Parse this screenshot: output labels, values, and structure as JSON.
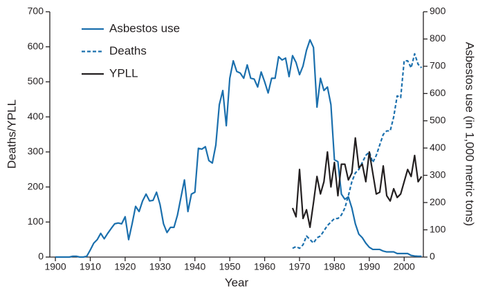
{
  "chart_data": {
    "type": "line",
    "x_label": "Year",
    "y_label": "Deaths/YPLL",
    "y2_label": "Asbestos use (in 1,000 metric tons)",
    "legend": "top-left",
    "x": [
      1900,
      1901,
      1902,
      1903,
      1904,
      1905,
      1906,
      1907,
      1908,
      1909,
      1910,
      1911,
      1912,
      1913,
      1914,
      1915,
      1916,
      1917,
      1918,
      1919,
      1920,
      1921,
      1922,
      1923,
      1924,
      1925,
      1926,
      1927,
      1928,
      1929,
      1930,
      1931,
      1932,
      1933,
      1934,
      1935,
      1936,
      1937,
      1938,
      1939,
      1940,
      1941,
      1942,
      1943,
      1944,
      1945,
      1946,
      1947,
      1948,
      1949,
      1950,
      1951,
      1952,
      1953,
      1954,
      1955,
      1956,
      1957,
      1958,
      1959,
      1960,
      1961,
      1962,
      1963,
      1964,
      1965,
      1966,
      1967,
      1968,
      1969,
      1970,
      1971,
      1972,
      1973,
      1974,
      1975,
      1976,
      1977,
      1978,
      1979,
      1980,
      1981,
      1982,
      1983,
      1984,
      1985,
      1986,
      1987,
      1988,
      1989,
      1990,
      1991,
      1992,
      1993,
      1994,
      1995,
      1996,
      1997,
      1998,
      1999,
      2000,
      2001,
      2002,
      2003,
      2004,
      2005
    ],
    "series": [
      {
        "name": "Asbestos use",
        "color": "#1a6fad",
        "style": "solid",
        "axis": "y2",
        "values": [
          0,
          0,
          0,
          0,
          0,
          3,
          3,
          0,
          0,
          3,
          26,
          51,
          64,
          87,
          67,
          87,
          105,
          122,
          125,
          122,
          148,
          64,
          122,
          186,
          167,
          206,
          231,
          206,
          208,
          238,
          193,
          122,
          90,
          109,
          109,
          154,
          219,
          283,
          167,
          231,
          238,
          399,
          396,
          405,
          354,
          345,
          411,
          559,
          611,
          482,
          656,
          720,
          681,
          675,
          656,
          705,
          656,
          653,
          624,
          679,
          643,
          602,
          656,
          656,
          735,
          723,
          730,
          662,
          739,
          714,
          669,
          701,
          759,
          797,
          769,
          550,
          656,
          611,
          624,
          559,
          357,
          350,
          231,
          212,
          221,
          180,
          122,
          84,
          71,
          51,
          36,
          28,
          28,
          28,
          22,
          19,
          19,
          19,
          13,
          13,
          13,
          13,
          6,
          4,
          3,
          3
        ]
      },
      {
        "name": "Deaths",
        "color": "#1a6fad",
        "style": "dashed",
        "values": [
          null,
          null,
          null,
          null,
          null,
          null,
          null,
          null,
          null,
          null,
          null,
          null,
          null,
          null,
          null,
          null,
          null,
          null,
          null,
          null,
          null,
          null,
          null,
          null,
          null,
          null,
          null,
          null,
          null,
          null,
          null,
          null,
          null,
          null,
          null,
          null,
          null,
          null,
          null,
          null,
          null,
          null,
          null,
          null,
          null,
          null,
          null,
          null,
          null,
          null,
          null,
          null,
          null,
          null,
          null,
          null,
          null,
          null,
          null,
          null,
          null,
          null,
          null,
          null,
          null,
          null,
          null,
          null,
          25,
          30,
          25,
          35,
          60,
          50,
          40,
          55,
          60,
          75,
          90,
          100,
          110,
          110,
          120,
          140,
          175,
          215,
          240,
          250,
          270,
          290,
          300,
          270,
          290,
          320,
          350,
          360,
          360,
          400,
          460,
          455,
          560,
          560,
          540,
          580,
          550,
          540
        ]
      },
      {
        "name": "YPLL",
        "color": "#231f20",
        "style": "solid",
        "values": [
          null,
          null,
          null,
          null,
          null,
          null,
          null,
          null,
          null,
          null,
          null,
          null,
          null,
          null,
          null,
          null,
          null,
          null,
          null,
          null,
          null,
          null,
          null,
          null,
          null,
          null,
          null,
          null,
          null,
          null,
          null,
          null,
          null,
          null,
          null,
          null,
          null,
          null,
          null,
          null,
          null,
          null,
          null,
          null,
          null,
          null,
          null,
          null,
          null,
          null,
          null,
          null,
          null,
          null,
          null,
          null,
          null,
          null,
          null,
          null,
          null,
          null,
          null,
          null,
          null,
          null,
          null,
          null,
          140,
          115,
          250,
          110,
          135,
          85,
          155,
          230,
          180,
          215,
          300,
          200,
          270,
          175,
          265,
          265,
          220,
          240,
          340,
          255,
          265,
          215,
          300,
          240,
          180,
          185,
          260,
          175,
          160,
          195,
          170,
          180,
          215,
          250,
          230,
          290,
          215,
          230
        ]
      }
    ],
    "xlim": [
      1898.4,
      2005.5
    ],
    "xticks": [
      1900,
      1910,
      1920,
      1930,
      1940,
      1950,
      1960,
      1970,
      1980,
      1990,
      2000
    ],
    "ylim": [
      0,
      700
    ],
    "yticks": [
      0,
      100,
      200,
      300,
      400,
      500,
      600,
      700
    ],
    "y2lim": [
      0,
      900
    ],
    "y2ticks": [
      0,
      100,
      200,
      300,
      400,
      500,
      600,
      700,
      800,
      900
    ]
  }
}
